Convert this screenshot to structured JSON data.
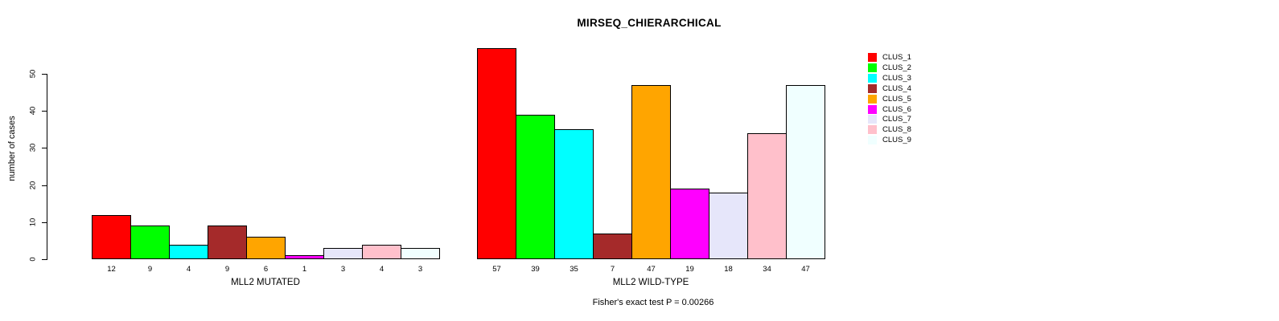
{
  "chart_data": {
    "type": "bar",
    "title": "MIRSEQ_CHIERARCHICAL",
    "ylabel": "number of cases",
    "xlabel": "",
    "categories": [
      "MLL2 MUTATED",
      "MLL2 WILD-TYPE"
    ],
    "series": [
      {
        "name": "CLUS_1",
        "color": "#FF0000",
        "values": [
          12,
          57
        ]
      },
      {
        "name": "CLUS_2",
        "color": "#00FF00",
        "values": [
          9,
          39
        ]
      },
      {
        "name": "CLUS_3",
        "color": "#00FFFF",
        "values": [
          4,
          35
        ]
      },
      {
        "name": "CLUS_4",
        "color": "#A52A2A",
        "values": [
          9,
          7
        ]
      },
      {
        "name": "CLUS_5",
        "color": "#FFA500",
        "values": [
          6,
          47
        ]
      },
      {
        "name": "CLUS_6",
        "color": "#FF00FF",
        "values": [
          1,
          19
        ]
      },
      {
        "name": "CLUS_7",
        "color": "#E6E6FA",
        "values": [
          3,
          18
        ]
      },
      {
        "name": "CLUS_8",
        "color": "#FFC0CB",
        "values": [
          4,
          34
        ]
      },
      {
        "name": "CLUS_9",
        "color": "#F0FFFF",
        "values": [
          3,
          47
        ]
      }
    ],
    "ylim": [
      0,
      50
    ],
    "yticks": [
      0,
      10,
      20,
      30,
      40,
      50
    ],
    "grid": false,
    "bar_value_labels_shown": true,
    "legend_position": "right",
    "annotation": "Fisher's exact test P = 0.00266"
  }
}
